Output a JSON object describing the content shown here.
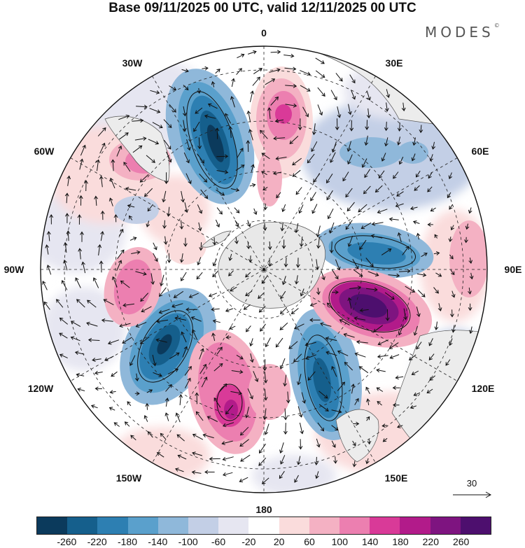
{
  "title": "Base 09/11/2025 00 UTC, valid 12/11/2025 00 UTC",
  "brand": {
    "name": "MODES",
    "mark": "©"
  },
  "map": {
    "projection": "south-polar-stereographic",
    "longitude_labels": [
      {
        "lon": 0,
        "text": "0"
      },
      {
        "lon": 30,
        "text": "30E"
      },
      {
        "lon": 60,
        "text": "60E"
      },
      {
        "lon": 90,
        "text": "90E"
      },
      {
        "lon": 120,
        "text": "120E"
      },
      {
        "lon": 150,
        "text": "150E"
      },
      {
        "lon": 180,
        "text": "180"
      },
      {
        "lon": -150,
        "text": "150W"
      },
      {
        "lon": -120,
        "text": "120W"
      },
      {
        "lon": -90,
        "text": "90W"
      },
      {
        "lon": -60,
        "text": "60W"
      },
      {
        "lon": -30,
        "text": "30W"
      }
    ],
    "wind_reference": {
      "value": "30"
    }
  },
  "colorbar": {
    "colors": [
      "#0b3a5c",
      "#155f8c",
      "#2d7fb2",
      "#5aa0cc",
      "#8fb8da",
      "#c3cfe6",
      "#e6e6f1",
      "#ffffff",
      "#fadcdc",
      "#f4b1c3",
      "#ec7fb0",
      "#d93a98",
      "#b21b8a",
      "#7e1480",
      "#4d0f6e"
    ],
    "tick_labels": [
      "-260",
      "-220",
      "-180",
      "-140",
      "-100",
      "-60",
      "-20",
      "20",
      "60",
      "100",
      "140",
      "180",
      "220",
      "260"
    ],
    "neutral_color": "#ffffff",
    "land_color": "#e8e8e8"
  }
}
